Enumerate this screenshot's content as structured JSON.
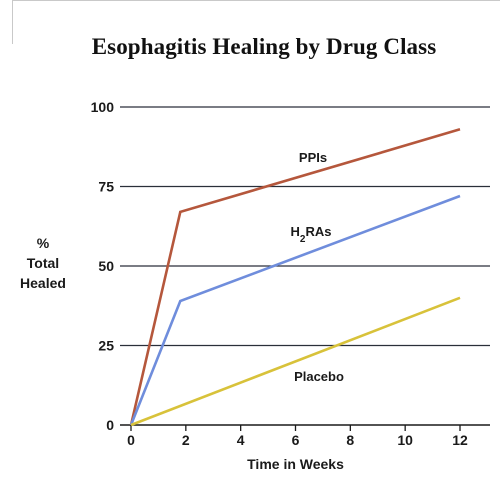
{
  "chart_data": {
    "type": "line",
    "title": "Esophagitis Healing by Drug Class",
    "ylabel_lines": [
      "%",
      "Total",
      "Healed"
    ],
    "xlabel": "Time in Weeks",
    "xlim": [
      0,
      12
    ],
    "ylim": [
      0,
      100
    ],
    "xticks": [
      0,
      2,
      4,
      6,
      8,
      10,
      12
    ],
    "yticks": [
      0,
      25,
      50,
      75,
      100
    ],
    "grid": true,
    "series": [
      {
        "name": "PPIs",
        "color": "#b5573c",
        "x": [
          0,
          1.8,
          12
        ],
        "y": [
          0,
          67,
          93
        ]
      },
      {
        "name": "H2RAs",
        "color": "#6f8ddc",
        "x": [
          0,
          1.8,
          12
        ],
        "y": [
          0,
          39,
          72
        ]
      },
      {
        "name": "Placebo",
        "color": "#d8c23a",
        "x": [
          0,
          12
        ],
        "y": [
          0,
          40
        ]
      }
    ]
  }
}
